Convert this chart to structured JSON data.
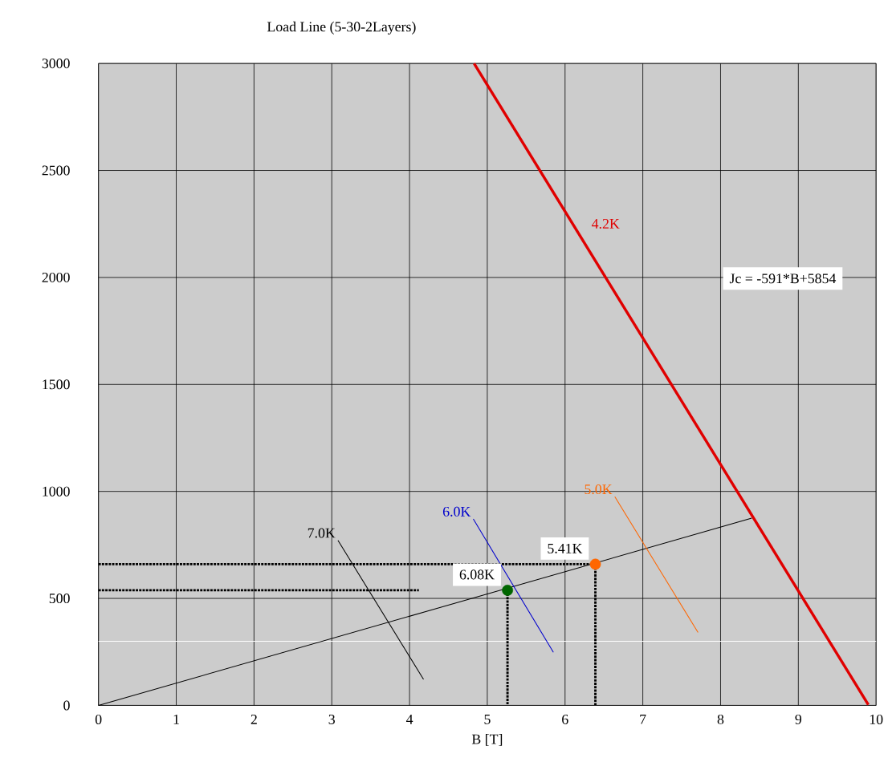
{
  "chart_data": {
    "type": "line",
    "title": "Load Line (5-30-2Layers)",
    "xlabel": "B [T]",
    "xlim": [
      0,
      10
    ],
    "ylim": [
      0,
      3000
    ],
    "xticks": [
      0,
      1,
      2,
      3,
      4,
      5,
      6,
      7,
      8,
      9,
      10
    ],
    "yticks": [
      0,
      500,
      1000,
      1500,
      2000,
      2500,
      3000
    ],
    "grid": true,
    "marker": "none",
    "line_style": "solid",
    "series": [
      {
        "name": "4.2K",
        "color": "#e00000",
        "x": [
          4.83,
          9.9
        ],
        "values": [
          3000,
          3
        ]
      },
      {
        "color": "#000000",
        "x": [
          0,
          8.4
        ],
        "values": [
          0,
          875
        ]
      },
      {
        "name": "5.0K",
        "color": "#ff6600",
        "x": [
          6.64,
          7.71
        ],
        "values": [
          975,
          341
        ]
      },
      {
        "name": "6.0K",
        "color": "#0000cc",
        "x": [
          4.82,
          5.85
        ],
        "values": [
          871,
          248
        ]
      },
      {
        "name": "7.0K",
        "color": "#000000",
        "x": [
          3.08,
          4.18
        ],
        "values": [
          771,
          122
        ]
      },
      {
        "color": "#000000",
        "line_style": "dotted",
        "x": [
          0,
          6.39
        ],
        "values": [
          660,
          660
        ]
      },
      {
        "color": "#000000",
        "line_style": "dotted",
        "x": [
          0,
          4.12
        ],
        "values": [
          538,
          538
        ]
      },
      {
        "color": "#000000",
        "line_style": "dotted",
        "x": [
          5.26,
          5.26
        ],
        "values": [
          538,
          0
        ]
      },
      {
        "color": "#000000",
        "line_style": "dotted",
        "x": [
          6.39,
          6.39
        ],
        "values": [
          660,
          0
        ]
      },
      {
        "type": "scatter",
        "marker": "circle",
        "x": [
          5.26,
          6.39
        ],
        "values": [
          538,
          660
        ],
        "colors": [
          "#006600",
          "#ff6600"
        ]
      }
    ],
    "ref_lines": [
      {
        "axis": "y",
        "value": 300,
        "color": "#ffffff"
      }
    ],
    "annotations": [
      {
        "text": "6.08K",
        "x": 5.26,
        "y": 538
      },
      {
        "text": "5.41K",
        "x": 6.39,
        "y": 660
      },
      "Jc = -591*B+5854"
    ]
  }
}
